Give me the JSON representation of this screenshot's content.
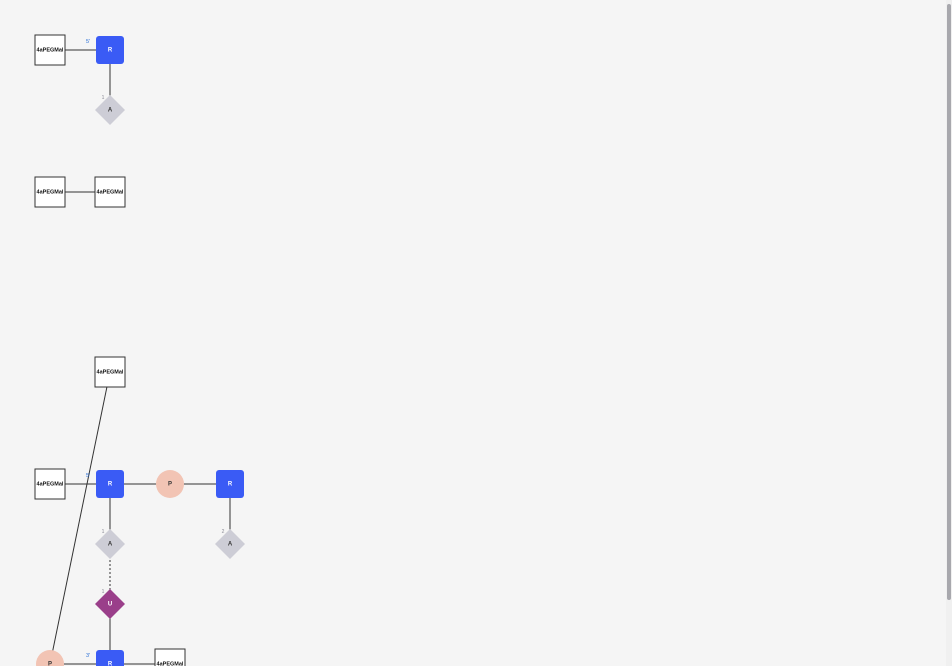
{
  "diagram": {
    "colors": {
      "ribose": "#3a5bf5",
      "phosphate": "#f2c4b4",
      "base_a": "#cdcdd6",
      "base_u": "#9a3f8a",
      "linker_fill": "#ffffff",
      "linker_stroke": "#333333",
      "line": "#333333",
      "label_blue": "#2a6fd6"
    },
    "molecules": [
      {
        "id": "mol1",
        "nodes": [
          {
            "id": "m1-linker",
            "type": "linker",
            "label": "4aPEGMal"
          },
          {
            "id": "m1-ribose",
            "type": "ribose",
            "label": "R",
            "end_label": "5'"
          },
          {
            "id": "m1-base",
            "type": "base_a",
            "label": "A",
            "index_label": "1"
          }
        ]
      },
      {
        "id": "mol2",
        "nodes": [
          {
            "id": "m2-linker-a",
            "type": "linker",
            "label": "4aPEGMal"
          },
          {
            "id": "m2-linker-b",
            "type": "linker",
            "label": "4aPEGMal"
          }
        ]
      },
      {
        "id": "mol3",
        "nodes": [
          {
            "id": "m3-linker-top",
            "type": "linker",
            "label": "4aPEGMal"
          },
          {
            "id": "m3-linker-left",
            "type": "linker",
            "label": "4aPEGMal"
          },
          {
            "id": "m3-ribose-1",
            "type": "ribose",
            "label": "R",
            "end_label": "5'"
          },
          {
            "id": "m3-phosphate-1",
            "type": "phosphate",
            "label": "P"
          },
          {
            "id": "m3-ribose-2",
            "type": "ribose",
            "label": "R"
          },
          {
            "id": "m3-base-a1",
            "type": "base_a",
            "label": "A",
            "index_label": "1"
          },
          {
            "id": "m3-base-a2",
            "type": "base_a",
            "label": "A",
            "index_label": "2"
          },
          {
            "id": "m3-base-u",
            "type": "base_u",
            "label": "U",
            "index_label": "1"
          },
          {
            "id": "m3-phosphate-2",
            "type": "phosphate",
            "label": "P"
          },
          {
            "id": "m3-ribose-3",
            "type": "ribose",
            "label": "R",
            "end_label": "3'"
          },
          {
            "id": "m3-linker-bottom",
            "type": "linker",
            "label": "4aPEGMal"
          }
        ]
      }
    ]
  }
}
